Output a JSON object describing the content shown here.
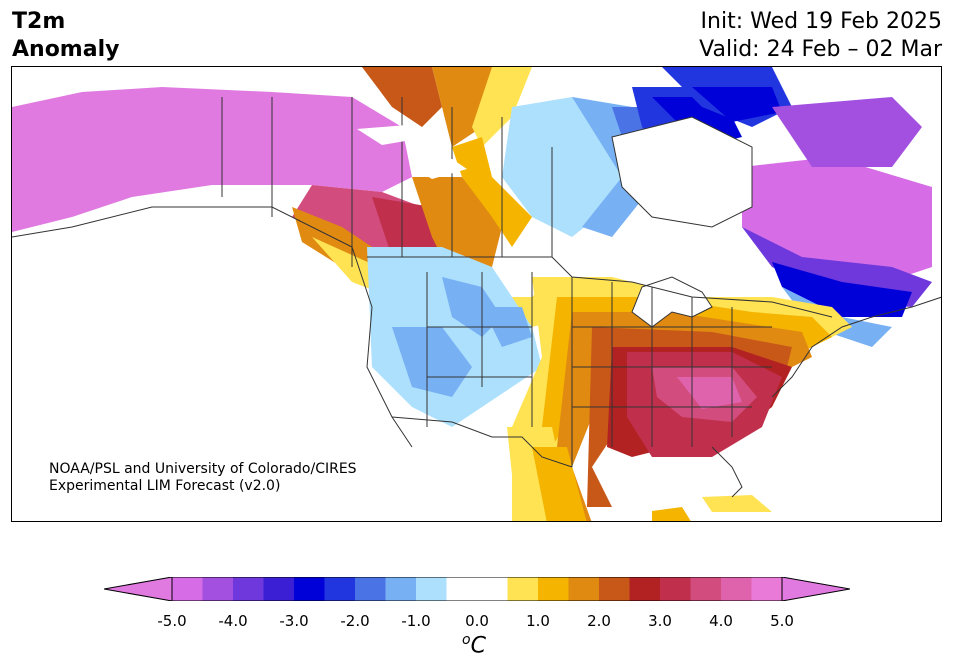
{
  "header": {
    "title_line1": "T2m",
    "title_line2": "Anomaly",
    "init": "Init: Wed 19 Feb 2025",
    "valid": "Valid: 24 Feb – 02 Mar"
  },
  "credit": {
    "line1": "NOAA/PSL and University of Colorado/CIRES",
    "line2": "Experimental LIM Forecast (v2.0)"
  },
  "colorbar": {
    "unit": "C",
    "tick_labels": [
      "-5.0",
      "-4.0",
      "-3.0",
      "-2.0",
      "-1.0",
      "0.0",
      "1.0",
      "2.0",
      "3.0",
      "4.0",
      "5.0"
    ],
    "colors": [
      "#d66de6",
      "#a350e0",
      "#6e38dc",
      "#3a1fd4",
      "#0000d8",
      "#2236e0",
      "#4a73e6",
      "#78b0f4",
      "#ade0fc",
      "#ffffff",
      "#ffffff",
      "#ffe352",
      "#f4b400",
      "#e08a12",
      "#c85818",
      "#b22222",
      "#c0304c",
      "#d24c7e",
      "#de62ac",
      "#ea7ad8"
    ],
    "extend": "both"
  },
  "colors": {
    "neg_extreme": "#e07ae0",
    "pos_extreme": "#e07ae0",
    "land_outline": "#333333"
  }
}
